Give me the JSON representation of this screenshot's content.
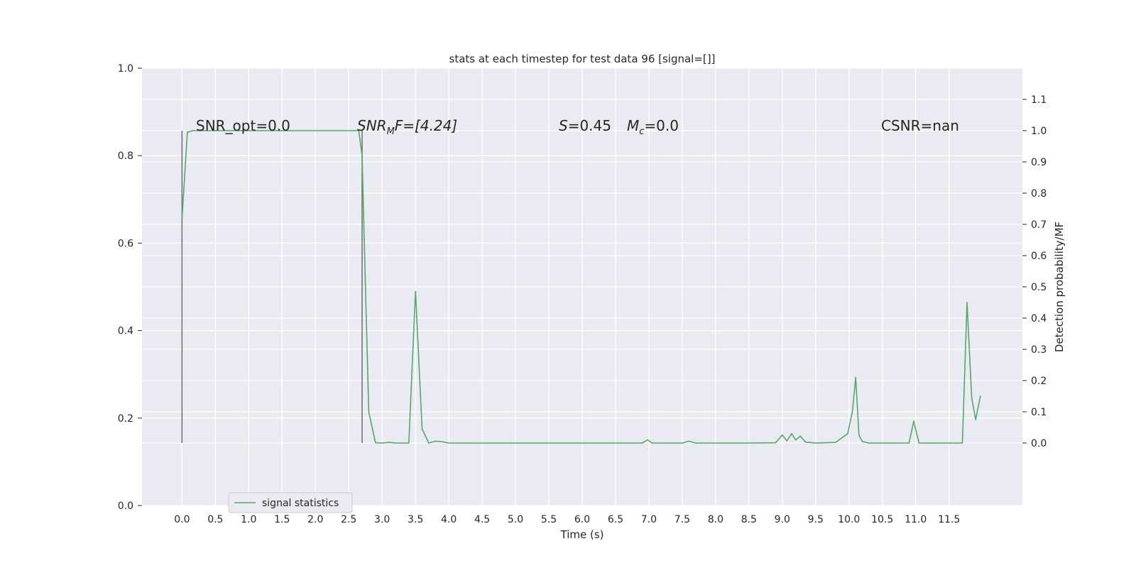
{
  "chart_data": {
    "type": "line",
    "title": "stats at each timestep for test data 96 [signal=[]]",
    "xlabel": "Time (s)",
    "ylabel_left": "",
    "ylabel_right": "Detection probability/MF",
    "xlim": [
      -0.6,
      12.6
    ],
    "ylim_left": [
      0.0,
      1.0
    ],
    "ylim_right": [
      -0.2,
      1.2
    ],
    "x_ticks": [
      0.0,
      0.5,
      1.0,
      1.5,
      2.0,
      2.5,
      3.0,
      3.5,
      4.0,
      4.5,
      5.0,
      5.5,
      6.0,
      6.5,
      7.0,
      7.5,
      8.0,
      8.5,
      9.0,
      9.5,
      10.0,
      10.5,
      11.0,
      11.5
    ],
    "x_tick_labels": [
      "0.0",
      "0.5",
      "1.0",
      "1.5",
      "2.0",
      "2.5",
      "3.0",
      "3.5",
      "4.0",
      "4.5",
      "5.0",
      "5.5",
      "6.0",
      "6.5",
      "7.0",
      "7.5",
      "8.0",
      "8.5",
      "9.0",
      "9.5",
      "10.0",
      "10.5",
      "11.0",
      "11.5"
    ],
    "y_left_ticks": [
      0.0,
      0.2,
      0.4,
      0.6,
      0.8,
      1.0
    ],
    "y_left_tick_labels": [
      "0.0",
      "0.2",
      "0.4",
      "0.6",
      "0.8",
      "1.0"
    ],
    "y_right_ticks": [
      0.0,
      0.1,
      0.2,
      0.3,
      0.4,
      0.5,
      0.6,
      0.7,
      0.8,
      0.9,
      1.0,
      1.1
    ],
    "y_right_tick_labels": [
      "0.0",
      "0.1",
      "0.2",
      "0.3",
      "0.4",
      "0.5",
      "0.6",
      "0.7",
      "0.8",
      "0.9",
      "1.0",
      "1.1"
    ],
    "grid": true,
    "legend_position": "bottom-left",
    "colors": {
      "background": "#eaeaf2",
      "grid": "#ffffff",
      "series": "#55a868",
      "marker_line": "#6e6e6e"
    },
    "series": [
      {
        "name": "signal statistics",
        "axis": "right",
        "x": [
          0.0,
          0.08,
          0.16,
          0.25,
          0.5,
          1.0,
          1.5,
          2.0,
          2.5,
          2.6,
          2.65,
          2.7,
          2.75,
          2.8,
          2.9,
          3.0,
          3.1,
          3.2,
          3.3,
          3.4,
          3.5,
          3.6,
          3.7,
          3.8,
          3.9,
          4.0,
          4.5,
          5.0,
          5.5,
          6.0,
          6.5,
          6.9,
          6.98,
          7.05,
          7.5,
          7.6,
          7.7,
          8.0,
          8.5,
          8.9,
          9.0,
          9.07,
          9.14,
          9.2,
          9.27,
          9.35,
          9.5,
          9.8,
          9.9,
          9.98,
          10.05,
          10.1,
          10.15,
          10.2,
          10.3,
          10.5,
          10.9,
          10.97,
          11.05,
          11.2,
          11.5,
          11.7,
          11.77,
          11.84,
          11.9,
          11.97
        ],
        "values": [
          0.72,
          0.995,
          1.0,
          1.0,
          1.0,
          1.0,
          1.0,
          1.0,
          1.0,
          1.0,
          1.0,
          0.92,
          0.5,
          0.1,
          0.001,
          0.0,
          0.002,
          0.0,
          0.0,
          0.0,
          0.485,
          0.045,
          0.0,
          0.006,
          0.004,
          0.0,
          0.0,
          0.0,
          0.0,
          0.0,
          0.0,
          0.0,
          0.01,
          0.0,
          0.0,
          0.006,
          0.0,
          0.0,
          0.0,
          0.001,
          0.026,
          0.007,
          0.03,
          0.01,
          0.022,
          0.003,
          0.0,
          0.002,
          0.018,
          0.03,
          0.1,
          0.21,
          0.025,
          0.005,
          0.0,
          0.0,
          0.0,
          0.07,
          0.0,
          0.0,
          0.0,
          0.0,
          0.45,
          0.145,
          0.075,
          0.15
        ]
      }
    ],
    "vertical_markers": [
      {
        "x": 0.0,
        "y_range": [
          0.0,
          1.0
        ],
        "axis": "right"
      },
      {
        "x": 2.7,
        "y_range": [
          0.0,
          1.0
        ],
        "axis": "right"
      }
    ],
    "annotations": {
      "snr_opt": "SNR_opt=0.0",
      "snr_mf_main": "SNR",
      "snr_mf_sub": "M",
      "snr_mf_rest": "F=[4.24]",
      "s_sym": "S",
      "s_val": "=0.45",
      "mc_main": "M",
      "mc_sub": "c",
      "mc_val": "=0.0",
      "csnr": "CSNR=nan"
    }
  }
}
